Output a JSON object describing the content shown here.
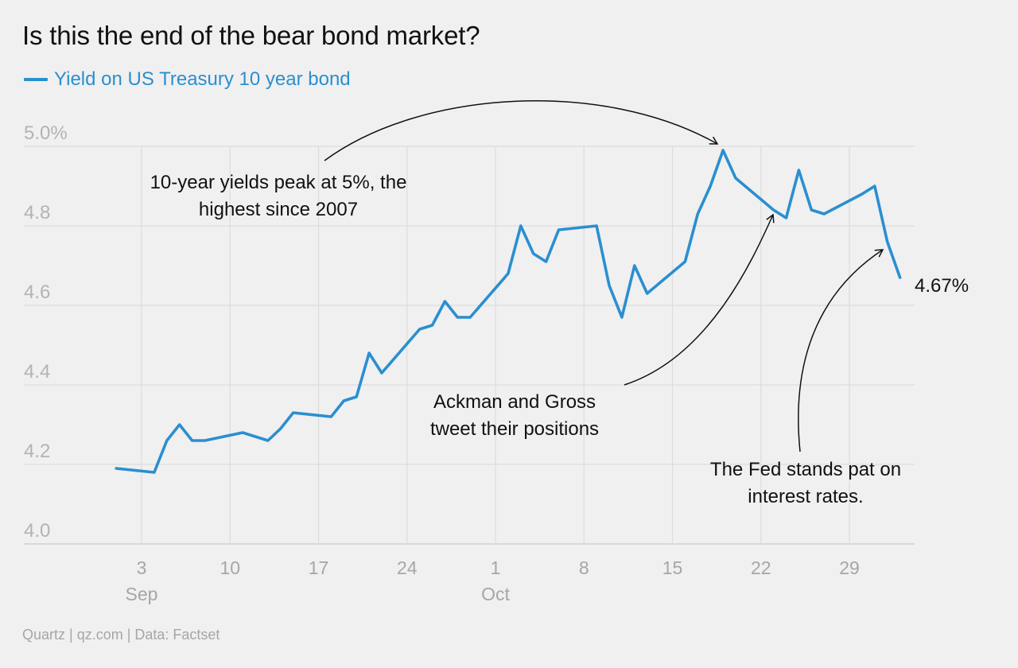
{
  "title": "Is this the end of the bear bond market?",
  "legend_label": "Yield on US Treasury 10 year bond",
  "source": "Quartz | qz.com | Data: Factset",
  "colors": {
    "series": "#2a8fd0",
    "grid": "#dcdcdc",
    "text": "#111111",
    "muted": "#a6a6a6"
  },
  "end_label": "4.67%",
  "annotations": {
    "peak": [
      "10-year yields peak at 5%, the",
      "highest since 2007"
    ],
    "ackman": [
      "Ackman and Gross",
      "tweet their positions"
    ],
    "fed": [
      "The Fed stands pat on",
      "interest rates."
    ]
  },
  "chart_data": {
    "type": "line",
    "title": "Is this the end of the bear bond market?",
    "xlabel": "",
    "ylabel": "",
    "ylim": [
      4.0,
      5.0
    ],
    "y_ticks": [
      "4.0",
      "4.2",
      "4.4",
      "4.6",
      "4.8",
      "5.0%"
    ],
    "x_ticks": [
      {
        "date": "2023-09-03",
        "label": "3",
        "month": "Sep"
      },
      {
        "date": "2023-09-10",
        "label": "10",
        "month": ""
      },
      {
        "date": "2023-09-17",
        "label": "17",
        "month": ""
      },
      {
        "date": "2023-09-24",
        "label": "24",
        "month": ""
      },
      {
        "date": "2023-10-01",
        "label": "1",
        "month": "Oct"
      },
      {
        "date": "2023-10-08",
        "label": "8",
        "month": ""
      },
      {
        "date": "2023-10-15",
        "label": "15",
        "month": ""
      },
      {
        "date": "2023-10-22",
        "label": "22",
        "month": ""
      },
      {
        "date": "2023-10-29",
        "label": "29",
        "month": ""
      }
    ],
    "grid": true,
    "series": [
      {
        "name": "Yield on US Treasury 10 year bond",
        "x": [
          "2023-09-01",
          "2023-09-04",
          "2023-09-05",
          "2023-09-06",
          "2023-09-07",
          "2023-09-08",
          "2023-09-11",
          "2023-09-13",
          "2023-09-14",
          "2023-09-15",
          "2023-09-18",
          "2023-09-19",
          "2023-09-20",
          "2023-09-21",
          "2023-09-22",
          "2023-09-25",
          "2023-09-26",
          "2023-09-27",
          "2023-09-28",
          "2023-09-29",
          "2023-10-02",
          "2023-10-03",
          "2023-10-04",
          "2023-10-05",
          "2023-10-06",
          "2023-10-09",
          "2023-10-10",
          "2023-10-11",
          "2023-10-12",
          "2023-10-13",
          "2023-10-16",
          "2023-10-17",
          "2023-10-18",
          "2023-10-19",
          "2023-10-20",
          "2023-10-23",
          "2023-10-24",
          "2023-10-25",
          "2023-10-26",
          "2023-10-27",
          "2023-10-30",
          "2023-10-31",
          "2023-11-01",
          "2023-11-02"
        ],
        "values": [
          4.19,
          4.18,
          4.26,
          4.3,
          4.26,
          4.26,
          4.28,
          4.26,
          4.29,
          4.33,
          4.32,
          4.36,
          4.37,
          4.48,
          4.43,
          4.54,
          4.55,
          4.61,
          4.57,
          4.57,
          4.68,
          4.8,
          4.73,
          4.71,
          4.79,
          4.8,
          4.65,
          4.57,
          4.7,
          4.63,
          4.71,
          4.83,
          4.9,
          4.99,
          4.92,
          4.84,
          4.82,
          4.94,
          4.84,
          4.83,
          4.88,
          4.9,
          4.76,
          4.67
        ]
      }
    ]
  }
}
